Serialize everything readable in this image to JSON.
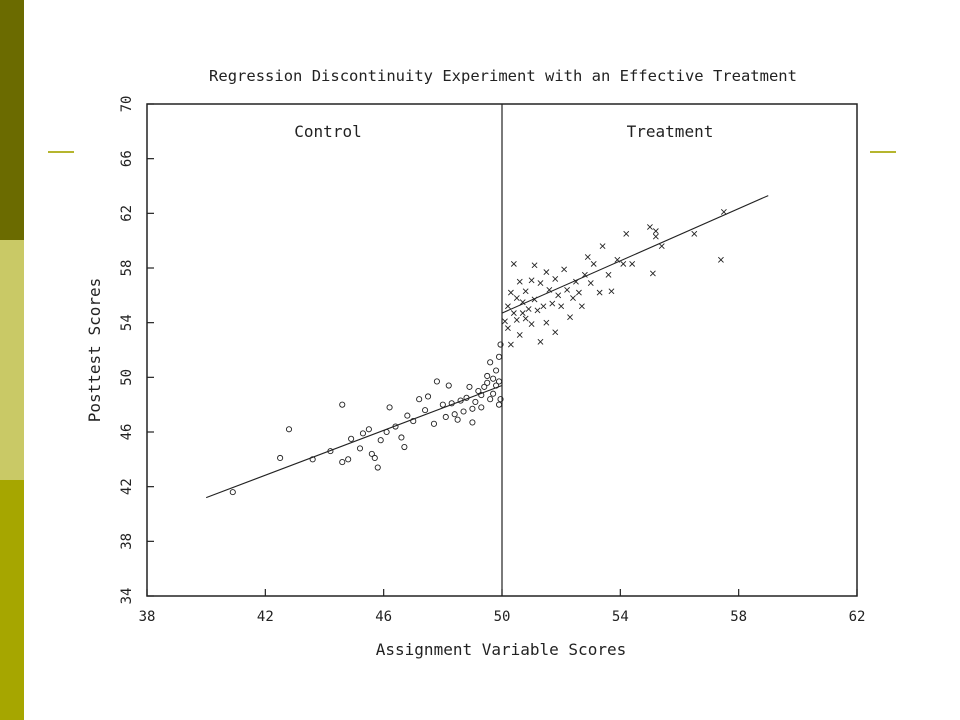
{
  "theme": {
    "sidebar_colors": [
      "#6b6b00",
      "#c9c966",
      "#a6a600"
    ],
    "accent_line_color": "#b5b52e",
    "ink_color": "#222222"
  },
  "chart_data": {
    "type": "scatter",
    "title": "Regression Discontinuity Experiment with an Effective Treatment",
    "xlabel": "Assignment Variable Scores",
    "ylabel": "Posttest Scores",
    "xlim": [
      38,
      62
    ],
    "ylim": [
      34,
      70
    ],
    "xticks": [
      38,
      42,
      46,
      50,
      54,
      58,
      62
    ],
    "yticks": [
      34,
      38,
      42,
      46,
      50,
      54,
      58,
      62,
      66,
      70
    ],
    "cutoff": 50,
    "region_labels": [
      "Control",
      "Treatment"
    ],
    "grid": false,
    "series": [
      {
        "name": "Control",
        "marker": "circle",
        "points": [
          [
            40.9,
            41.6
          ],
          [
            42.5,
            44.1
          ],
          [
            42.8,
            46.2
          ],
          [
            43.6,
            44.0
          ],
          [
            44.2,
            44.6
          ],
          [
            44.6,
            43.8
          ],
          [
            44.8,
            44.0
          ],
          [
            44.6,
            48.0
          ],
          [
            44.9,
            45.5
          ],
          [
            45.2,
            44.8
          ],
          [
            45.3,
            45.9
          ],
          [
            45.5,
            46.2
          ],
          [
            45.6,
            44.4
          ],
          [
            45.7,
            44.1
          ],
          [
            45.8,
            43.4
          ],
          [
            45.9,
            45.4
          ],
          [
            46.1,
            46.0
          ],
          [
            46.2,
            47.8
          ],
          [
            46.4,
            46.4
          ],
          [
            46.6,
            45.6
          ],
          [
            46.7,
            44.9
          ],
          [
            46.8,
            47.2
          ],
          [
            47.0,
            46.8
          ],
          [
            47.2,
            48.4
          ],
          [
            47.4,
            47.6
          ],
          [
            47.5,
            48.6
          ],
          [
            47.7,
            46.6
          ],
          [
            47.8,
            49.7
          ],
          [
            48.0,
            48.0
          ],
          [
            48.1,
            47.1
          ],
          [
            48.2,
            49.4
          ],
          [
            48.3,
            48.1
          ],
          [
            48.4,
            47.3
          ],
          [
            48.5,
            46.9
          ],
          [
            48.6,
            48.3
          ],
          [
            48.7,
            47.5
          ],
          [
            48.8,
            48.5
          ],
          [
            48.9,
            49.3
          ],
          [
            49.0,
            47.7
          ],
          [
            49.0,
            46.7
          ],
          [
            49.1,
            48.2
          ],
          [
            49.2,
            49.0
          ],
          [
            49.3,
            48.7
          ],
          [
            49.3,
            47.8
          ],
          [
            49.4,
            49.3
          ],
          [
            49.5,
            50.1
          ],
          [
            49.5,
            49.6
          ],
          [
            49.6,
            48.4
          ],
          [
            49.6,
            51.1
          ],
          [
            49.7,
            49.9
          ],
          [
            49.7,
            48.8
          ],
          [
            49.8,
            49.4
          ],
          [
            49.8,
            50.5
          ],
          [
            49.9,
            48.0
          ],
          [
            49.9,
            49.7
          ],
          [
            49.95,
            52.4
          ],
          [
            49.95,
            48.4
          ],
          [
            49.9,
            51.5
          ]
        ]
      },
      {
        "name": "Treatment",
        "marker": "x",
        "points": [
          [
            50.1,
            54.1
          ],
          [
            50.2,
            55.2
          ],
          [
            50.2,
            53.6
          ],
          [
            50.3,
            56.2
          ],
          [
            50.3,
            52.4
          ],
          [
            50.4,
            54.7
          ],
          [
            50.4,
            58.3
          ],
          [
            50.5,
            55.8
          ],
          [
            50.5,
            54.2
          ],
          [
            50.6,
            57.0
          ],
          [
            50.6,
            53.1
          ],
          [
            50.7,
            55.5
          ],
          [
            50.7,
            54.7
          ],
          [
            50.8,
            56.3
          ],
          [
            50.8,
            54.3
          ],
          [
            50.9,
            55.0
          ],
          [
            51.0,
            57.1
          ],
          [
            51.0,
            53.9
          ],
          [
            51.1,
            58.2
          ],
          [
            51.1,
            55.7
          ],
          [
            51.2,
            54.9
          ],
          [
            51.3,
            52.6
          ],
          [
            51.3,
            56.9
          ],
          [
            51.4,
            55.2
          ],
          [
            51.5,
            57.7
          ],
          [
            51.5,
            54.0
          ],
          [
            51.6,
            56.4
          ],
          [
            51.7,
            55.4
          ],
          [
            51.8,
            53.3
          ],
          [
            51.8,
            57.2
          ],
          [
            51.9,
            56.0
          ],
          [
            52.0,
            55.2
          ],
          [
            52.1,
            57.9
          ],
          [
            52.2,
            56.4
          ],
          [
            52.3,
            54.4
          ],
          [
            52.4,
            55.8
          ],
          [
            52.5,
            57.0
          ],
          [
            52.6,
            56.2
          ],
          [
            52.7,
            55.2
          ],
          [
            52.8,
            57.5
          ],
          [
            52.9,
            58.8
          ],
          [
            53.0,
            56.9
          ],
          [
            53.1,
            58.3
          ],
          [
            53.3,
            56.2
          ],
          [
            53.4,
            59.6
          ],
          [
            53.6,
            57.5
          ],
          [
            53.7,
            56.3
          ],
          [
            53.9,
            58.6
          ],
          [
            54.1,
            58.3
          ],
          [
            54.2,
            60.5
          ],
          [
            54.4,
            58.3
          ],
          [
            55.0,
            61.0
          ],
          [
            55.1,
            57.6
          ],
          [
            55.2,
            60.3
          ],
          [
            55.4,
            59.6
          ],
          [
            55.2,
            60.7
          ],
          [
            56.5,
            60.5
          ],
          [
            57.4,
            58.6
          ],
          [
            57.5,
            62.1
          ]
        ]
      }
    ],
    "regression_lines": [
      {
        "x": [
          40,
          50
        ],
        "y": [
          41.2,
          49.4
        ]
      },
      {
        "x": [
          50,
          59
        ],
        "y": [
          54.7,
          63.3
        ]
      }
    ]
  }
}
